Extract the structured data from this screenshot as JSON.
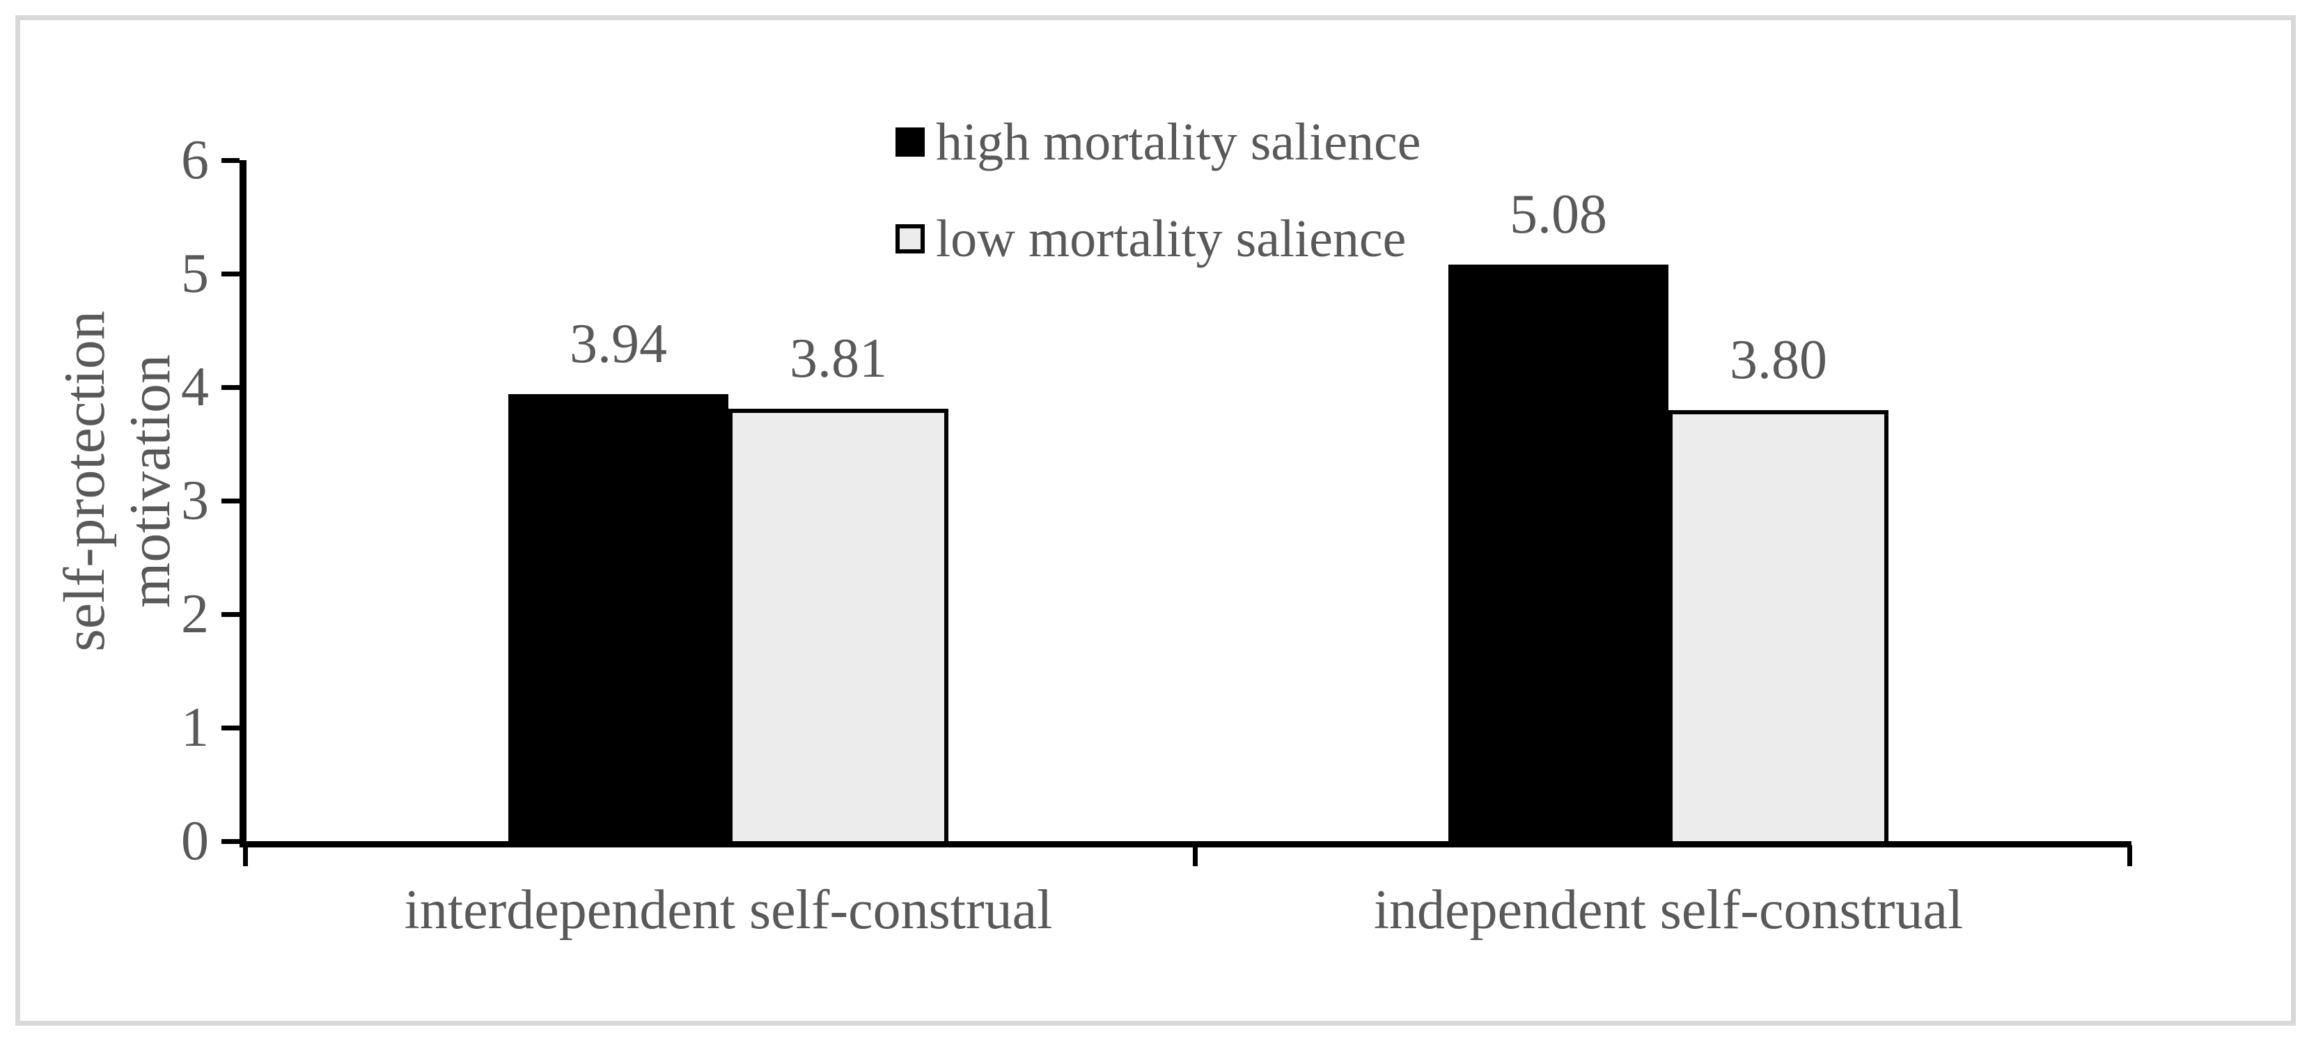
{
  "figure": {
    "background": "#ffffff",
    "frame_color": "#d9d9d9"
  },
  "colors": {
    "text": "#595959",
    "axis": "#000000",
    "series_high_fill": "#000000",
    "series_low_fill": "#ececec",
    "series_low_border": "#000000"
  },
  "chart_data": {
    "type": "bar",
    "title": "",
    "categories": [
      "interdependent self-construal",
      "independent self-construal"
    ],
    "series": [
      {
        "name": "high mortality salience",
        "values": [
          3.94,
          5.08
        ],
        "labels": [
          "3.94",
          "5.08"
        ],
        "fill": "#000000",
        "border": null
      },
      {
        "name": "low mortality salience",
        "values": [
          3.81,
          3.8
        ],
        "labels": [
          "3.81",
          "3.80"
        ],
        "fill": "#ececec",
        "border": "#000000"
      }
    ],
    "ylabel_lines": [
      "self-protection",
      "motivation"
    ],
    "yticks": [
      {
        "value": 0,
        "label": "0"
      },
      {
        "value": 1,
        "label": "1"
      },
      {
        "value": 2,
        "label": "2"
      },
      {
        "value": 3,
        "label": "3"
      },
      {
        "value": 4,
        "label": "4"
      },
      {
        "value": 5,
        "label": "5"
      },
      {
        "value": 6,
        "label": "6"
      }
    ],
    "ylim": [
      0,
      6
    ],
    "grid": false,
    "legend_position": "top-center"
  }
}
